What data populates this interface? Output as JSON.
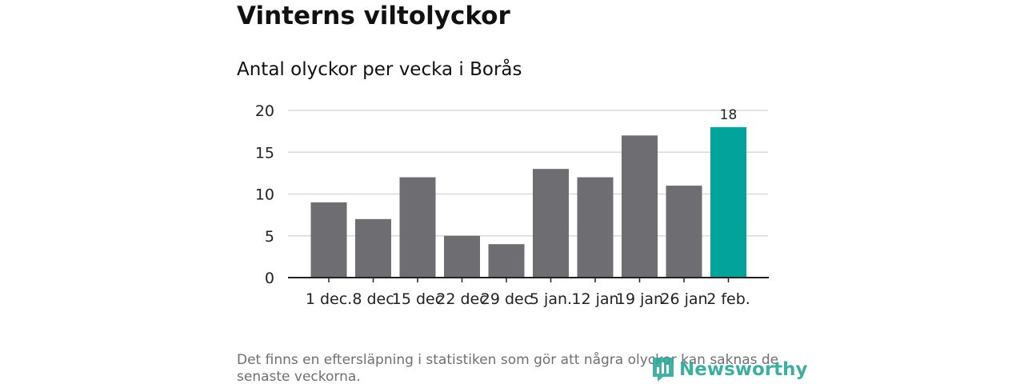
{
  "title": "Vinterns viltolyckor",
  "subtitle": "Antal olyckor per vecka i Borås",
  "footnote": "Det finns en eftersläpning i statistiken som gör att några olyckor kan saknas de senaste veckorna.",
  "brand": "Newsworthy",
  "colors": {
    "bar": "#6e6d72",
    "highlight": "#00a49a",
    "grid": "#d9d9d9",
    "axis": "#222222",
    "brand": "#2ea89a"
  },
  "chart_data": {
    "type": "bar",
    "categories": [
      "1 dec.",
      "8 dec",
      "15 dec",
      "22 dec",
      "29 dec",
      "5 jan.",
      "12 jan",
      "19 jan",
      "26 jan",
      "2 feb."
    ],
    "values": [
      9,
      7,
      12,
      5,
      4,
      13,
      12,
      17,
      11,
      18
    ],
    "highlight_index": 9,
    "data_labels": [
      {
        "index": 9,
        "text": "18"
      }
    ],
    "yticks": [
      0,
      5,
      10,
      15,
      20
    ],
    "ylim": [
      0,
      20
    ],
    "grid": true
  }
}
